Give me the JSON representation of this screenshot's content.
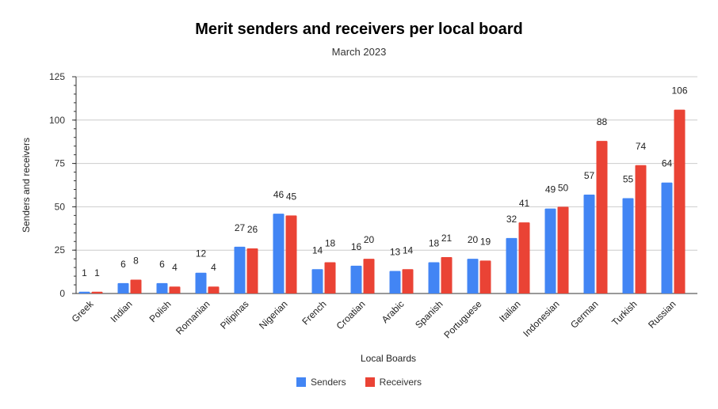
{
  "chart_data": {
    "type": "bar",
    "title": "Merit senders and receivers per local board",
    "subtitle": "March 2023",
    "xlabel": "Local Boards",
    "ylabel": "Senders and receivers",
    "ylim": [
      0,
      125
    ],
    "yticks": [
      0,
      25,
      50,
      75,
      100,
      125
    ],
    "grid": true,
    "legend_position": "bottom",
    "categories": [
      "Greek",
      "Indian",
      "Polish",
      "Romanian",
      "Pilipinas",
      "Nigerian",
      "French",
      "Croatian",
      "Arabic",
      "Spanish",
      "Portuguese",
      "Italian",
      "Indonesian",
      "German",
      "Turkish",
      "Russian"
    ],
    "series": [
      {
        "name": "Senders",
        "color": "#4285f4",
        "values": [
          1,
          6,
          6,
          12,
          27,
          46,
          14,
          16,
          13,
          18,
          20,
          32,
          49,
          57,
          55,
          64
        ]
      },
      {
        "name": "Receivers",
        "color": "#ea4335",
        "values": [
          1,
          8,
          4,
          4,
          26,
          45,
          18,
          20,
          14,
          21,
          19,
          41,
          50,
          88,
          74,
          106
        ]
      }
    ]
  }
}
